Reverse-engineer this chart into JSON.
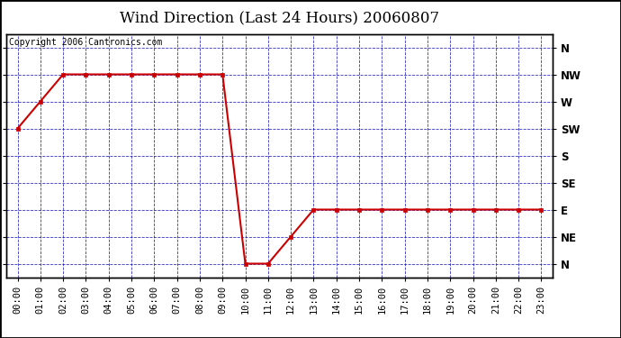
{
  "title": "Wind Direction (Last 24 Hours) 20060807",
  "copyright_text": "Copyright 2006 Cantronics.com",
  "x_labels": [
    "00:00",
    "01:00",
    "02:00",
    "03:00",
    "04:00",
    "05:00",
    "06:00",
    "07:00",
    "08:00",
    "09:00",
    "10:00",
    "11:00",
    "12:00",
    "13:00",
    "14:00",
    "15:00",
    "16:00",
    "17:00",
    "18:00",
    "19:00",
    "20:00",
    "21:00",
    "22:00",
    "23:00"
  ],
  "y_labels_right": [
    "N",
    "NW",
    "W",
    "SW",
    "S",
    "SE",
    "E",
    "NE",
    "N"
  ],
  "y_tick_positions": [
    8,
    7,
    6,
    5,
    4,
    3,
    2,
    1,
    0
  ],
  "wind_data": [
    5,
    6,
    7,
    7,
    7,
    7,
    7,
    7,
    7,
    7,
    0,
    0,
    1,
    2,
    2,
    2,
    2,
    2,
    2,
    2,
    2,
    2,
    2,
    2
  ],
  "line_color": "#cc0000",
  "marker_color": "#cc0000",
  "grid_color": "#0000bb",
  "background_color": "#ffffff",
  "plot_bg_color": "#ffffff",
  "title_fontsize": 12,
  "copyright_fontsize": 7,
  "tick_fontsize": 7.5,
  "outer_bg": "#ffffff"
}
